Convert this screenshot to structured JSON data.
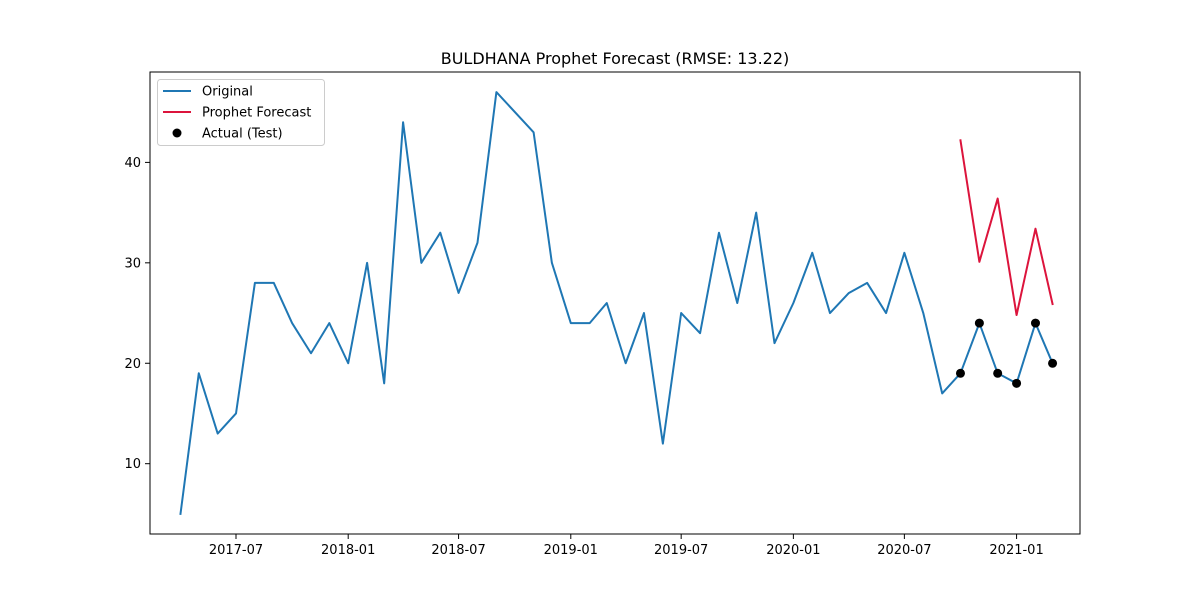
{
  "chart_data": {
    "type": "line",
    "title": "BULDHANA Prophet Forecast (RMSE: 13.22)",
    "xlabel": "",
    "ylabel": "",
    "x_type": "date",
    "xlim": [
      "2017-02-10",
      "2021-04-15"
    ],
    "ylim": [
      3,
      49
    ],
    "x_ticks": [
      {
        "date": "2017-07-01",
        "label": "2017-07"
      },
      {
        "date": "2018-01-01",
        "label": "2018-01"
      },
      {
        "date": "2018-07-01",
        "label": "2018-07"
      },
      {
        "date": "2019-01-01",
        "label": "2019-01"
      },
      {
        "date": "2019-07-01",
        "label": "2019-07"
      },
      {
        "date": "2020-01-01",
        "label": "2020-01"
      },
      {
        "date": "2020-07-01",
        "label": "2020-07"
      },
      {
        "date": "2021-01-01",
        "label": "2021-01"
      }
    ],
    "y_ticks": [
      10,
      20,
      30,
      40
    ],
    "grid": false,
    "legend_position": "top-left",
    "series": [
      {
        "name": "Original",
        "kind": "line",
        "color": "#1f77b4",
        "points": [
          [
            "2017-04-01",
            5
          ],
          [
            "2017-05-01",
            19
          ],
          [
            "2017-06-01",
            13
          ],
          [
            "2017-07-01",
            15
          ],
          [
            "2017-08-01",
            28
          ],
          [
            "2017-09-01",
            28
          ],
          [
            "2017-10-01",
            24
          ],
          [
            "2017-11-01",
            21
          ],
          [
            "2017-12-01",
            24
          ],
          [
            "2018-01-01",
            20
          ],
          [
            "2018-02-01",
            30
          ],
          [
            "2018-03-01",
            18
          ],
          [
            "2018-04-01",
            44
          ],
          [
            "2018-05-01",
            30
          ],
          [
            "2018-06-01",
            33
          ],
          [
            "2018-07-01",
            27
          ],
          [
            "2018-08-01",
            32
          ],
          [
            "2018-09-01",
            47
          ],
          [
            "2018-11-01",
            43
          ],
          [
            "2018-12-01",
            30
          ],
          [
            "2019-01-01",
            24
          ],
          [
            "2019-02-01",
            24
          ],
          [
            "2019-03-01",
            26
          ],
          [
            "2019-04-01",
            20
          ],
          [
            "2019-05-01",
            25
          ],
          [
            "2019-06-01",
            12
          ],
          [
            "2019-07-01",
            25
          ],
          [
            "2019-08-01",
            23
          ],
          [
            "2019-09-01",
            33
          ],
          [
            "2019-10-01",
            26
          ],
          [
            "2019-11-01",
            35
          ],
          [
            "2019-12-01",
            22
          ],
          [
            "2020-01-01",
            26
          ],
          [
            "2020-02-01",
            31
          ],
          [
            "2020-03-01",
            25
          ],
          [
            "2020-04-01",
            27
          ],
          [
            "2020-05-01",
            28
          ],
          [
            "2020-06-01",
            25
          ],
          [
            "2020-07-01",
            31
          ],
          [
            "2020-08-01",
            25
          ],
          [
            "2020-09-01",
            17
          ],
          [
            "2020-10-01",
            19
          ],
          [
            "2020-11-01",
            24
          ],
          [
            "2020-12-01",
            19
          ],
          [
            "2021-01-01",
            18
          ],
          [
            "2021-02-01",
            24
          ],
          [
            "2021-03-01",
            20
          ]
        ]
      },
      {
        "name": "Prophet Forecast",
        "kind": "line",
        "color": "#dc143c",
        "points": [
          [
            "2020-10-01",
            42.2
          ],
          [
            "2020-11-01",
            30.1
          ],
          [
            "2020-12-01",
            36.4
          ],
          [
            "2021-01-01",
            24.8
          ],
          [
            "2021-02-01",
            33.4
          ],
          [
            "2021-03-01",
            25.9
          ]
        ]
      },
      {
        "name": "Actual (Test)",
        "kind": "scatter",
        "color": "#000000",
        "points": [
          [
            "2020-10-01",
            19
          ],
          [
            "2020-11-01",
            24
          ],
          [
            "2020-12-01",
            19
          ],
          [
            "2021-01-01",
            18
          ],
          [
            "2021-02-01",
            24
          ],
          [
            "2021-03-01",
            20
          ]
        ]
      }
    ]
  }
}
